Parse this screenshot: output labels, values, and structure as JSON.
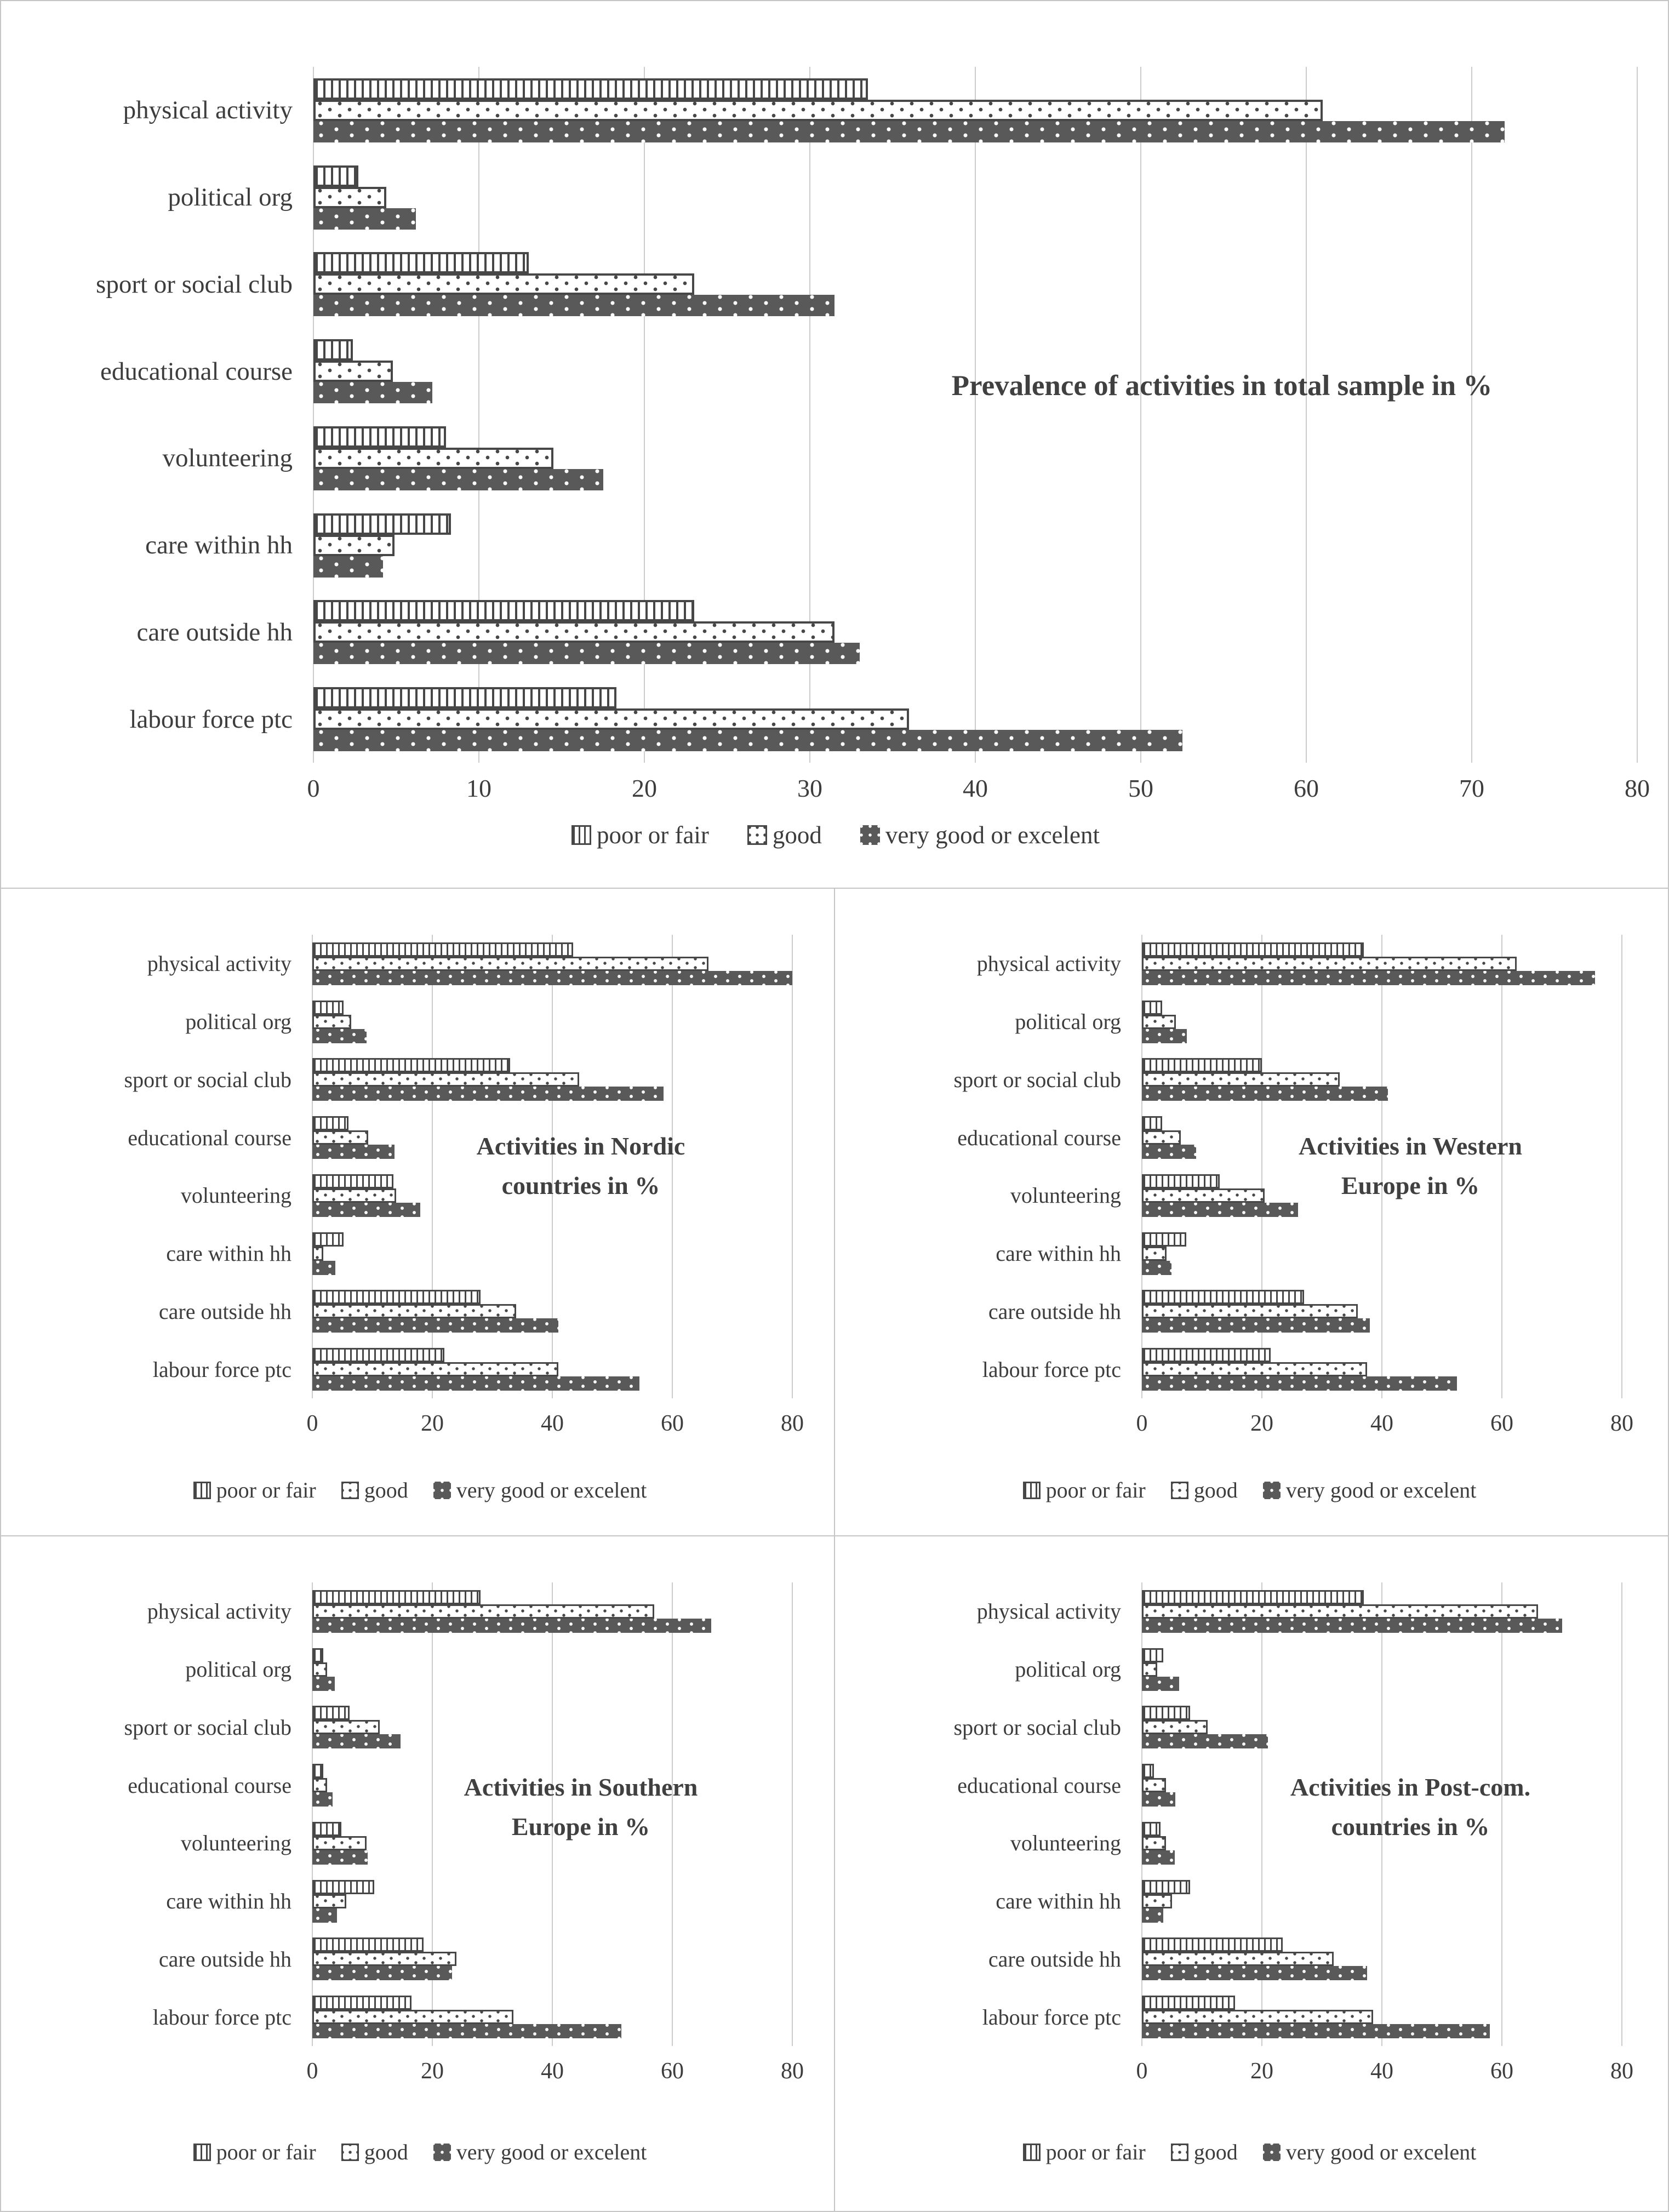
{
  "colors": {
    "bar_dark": "#595959",
    "pattern_ink": "#474747",
    "gridline": "#cccccc",
    "panel_border": "#c5c5c5",
    "text": "#3d3d3d"
  },
  "legend": {
    "items": [
      {
        "label": "poor or fair",
        "pattern": "vlines"
      },
      {
        "label": "good",
        "pattern": "dotslight"
      },
      {
        "label": "very good or excelent",
        "pattern": "dotsdark"
      }
    ]
  },
  "chart_data": [
    {
      "id": "total-sample",
      "type": "bar",
      "orientation": "horizontal",
      "title": "Prevalence of activities in total sample in %",
      "title_lines": [
        "Prevalence of activities in total sample in %"
      ],
      "xlabel": "",
      "ylabel": "",
      "xlim": [
        0,
        80
      ],
      "xticks": [
        0,
        10,
        20,
        30,
        40,
        50,
        60,
        70,
        80
      ],
      "grid": true,
      "legend_position": "bottom",
      "categories": [
        "physical activity",
        "political org",
        "sport or social club",
        "educational course",
        "volunteering",
        "care within hh",
        "care outside hh",
        "labour force ptc"
      ],
      "series": [
        {
          "name": "poor or fair",
          "values": [
            33.5,
            2.7,
            13,
            2.4,
            8,
            8.3,
            23,
            18.3
          ]
        },
        {
          "name": "good",
          "values": [
            61,
            4.4,
            23,
            4.8,
            14.5,
            4.9,
            31.5,
            36
          ]
        },
        {
          "name": "very good or excelent",
          "values": [
            72,
            6.2,
            31.5,
            7.2,
            17.5,
            4.2,
            33,
            52.5
          ]
        }
      ]
    },
    {
      "id": "nordic",
      "type": "bar",
      "orientation": "horizontal",
      "title": "Activities in Nordic countries in %",
      "title_lines": [
        "Activities in Nordic",
        "countries in %"
      ],
      "xlabel": "",
      "ylabel": "",
      "xlim": [
        0,
        80
      ],
      "xticks": [
        0,
        20,
        40,
        60,
        80
      ],
      "grid": true,
      "legend_position": "bottom",
      "categories": [
        "physical activity",
        "political org",
        "sport or social club",
        "educational course",
        "volunteering",
        "care within hh",
        "care outside hh",
        "labour force ptc"
      ],
      "series": [
        {
          "name": "poor or fair",
          "values": [
            43.5,
            5.2,
            33,
            6,
            13.5,
            5.2,
            28,
            22
          ]
        },
        {
          "name": "good",
          "values": [
            66,
            6.5,
            44.5,
            9.3,
            14,
            1.8,
            34,
            41
          ]
        },
        {
          "name": "very good or excelent",
          "values": [
            80,
            9,
            58.5,
            13.7,
            18,
            3.8,
            41,
            54.5
          ]
        }
      ]
    },
    {
      "id": "western-europe",
      "type": "bar",
      "orientation": "horizontal",
      "title": "Activities in Western Europe in %",
      "title_lines": [
        "Activities in Western",
        "Europe in %"
      ],
      "xlabel": "",
      "ylabel": "",
      "xlim": [
        0,
        80
      ],
      "xticks": [
        0,
        20,
        40,
        60,
        80
      ],
      "grid": true,
      "legend_position": "bottom",
      "categories": [
        "physical activity",
        "political org",
        "sport or social club",
        "educational course",
        "volunteering",
        "care within hh",
        "care outside hh",
        "labour force ptc"
      ],
      "series": [
        {
          "name": "poor or fair",
          "values": [
            37,
            3.4,
            20,
            3.4,
            13,
            7.4,
            27,
            21.5
          ]
        },
        {
          "name": "good",
          "values": [
            62.5,
            5.7,
            33,
            6.5,
            20.5,
            4.1,
            36,
            37.5
          ]
        },
        {
          "name": "very good or excelent",
          "values": [
            75.5,
            7.5,
            41,
            9,
            26,
            4.9,
            38,
            52.5
          ]
        }
      ]
    },
    {
      "id": "southern-europe",
      "type": "bar",
      "orientation": "horizontal",
      "title": "Activities in Southern Europe in %",
      "title_lines": [
        "Activities in Southern",
        "Europe in %"
      ],
      "xlabel": "",
      "ylabel": "",
      "xlim": [
        0,
        80
      ],
      "xticks": [
        0,
        20,
        40,
        60,
        80
      ],
      "grid": true,
      "legend_position": "bottom",
      "categories": [
        "physical activity",
        "political org",
        "sport or social club",
        "educational course",
        "volunteering",
        "care within hh",
        "care outside hh",
        "labour force ptc"
      ],
      "series": [
        {
          "name": "poor or fair",
          "values": [
            28,
            1.8,
            6.2,
            1.8,
            4.8,
            10.3,
            18.5,
            16.5
          ]
        },
        {
          "name": "good",
          "values": [
            57,
            2.5,
            11.2,
            2.5,
            9,
            5.7,
            24,
            33.5
          ]
        },
        {
          "name": "very good or excelent",
          "values": [
            66.5,
            3.7,
            14.7,
            3.4,
            9.2,
            4.1,
            23.3,
            51.5
          ]
        }
      ]
    },
    {
      "id": "post-com",
      "type": "bar",
      "orientation": "horizontal",
      "title": "Activities in Post-com. countries in %",
      "title_lines": [
        "Activities in Post-com.",
        "countries in %"
      ],
      "xlabel": "",
      "ylabel": "",
      "xlim": [
        0,
        80
      ],
      "xticks": [
        0,
        20,
        40,
        60,
        80
      ],
      "grid": true,
      "legend_position": "bottom",
      "categories": [
        "physical activity",
        "political org",
        "sport or social club",
        "educational course",
        "volunteering",
        "care within hh",
        "care outside hh",
        "labour force ptc"
      ],
      "series": [
        {
          "name": "poor or fair",
          "values": [
            37,
            3.6,
            8,
            2,
            3.1,
            8,
            23.5,
            15.5
          ]
        },
        {
          "name": "good",
          "values": [
            66,
            2.6,
            11,
            4,
            4,
            5,
            32,
            38.5
          ]
        },
        {
          "name": "very good or excelent",
          "values": [
            70,
            6.2,
            21,
            5.6,
            5.5,
            3.6,
            37.5,
            58
          ]
        }
      ]
    }
  ]
}
